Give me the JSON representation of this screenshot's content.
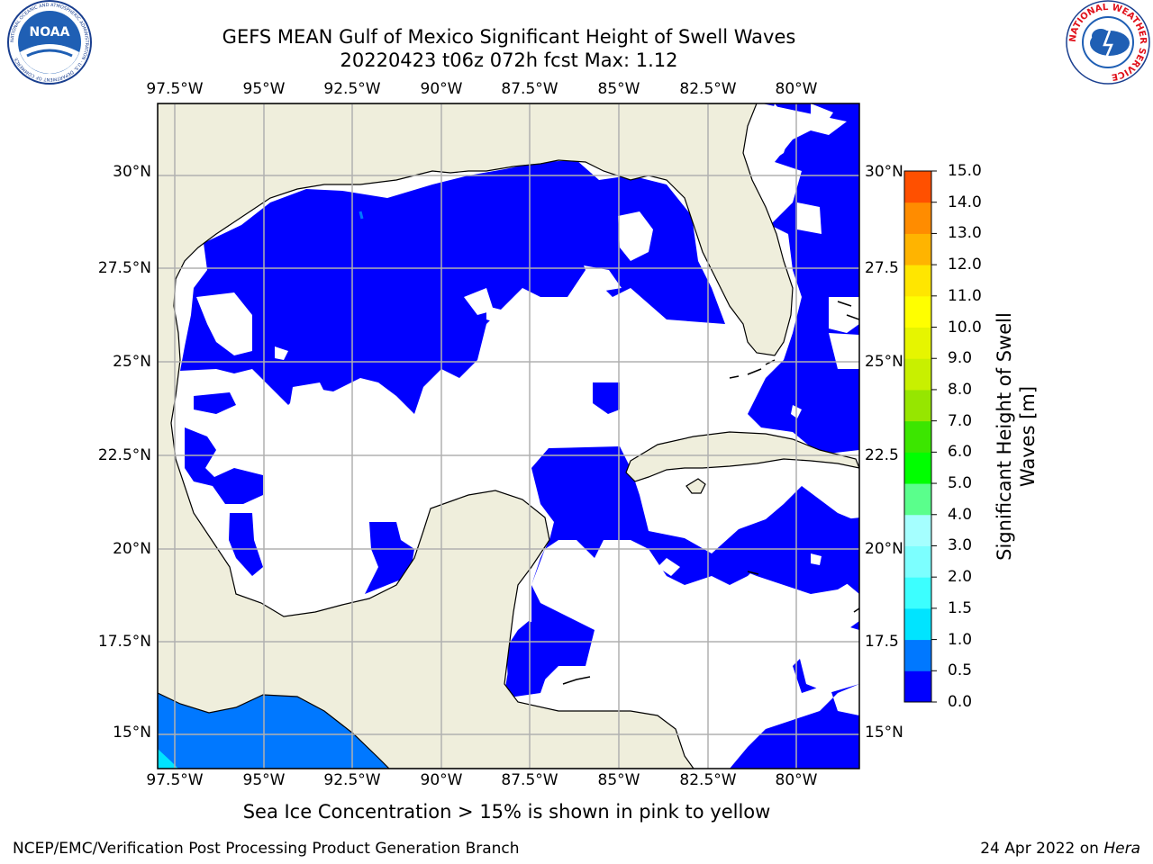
{
  "title": "GEFS MEAN Gulf of Mexico Significant Height of Swell Waves",
  "subtitle": "20220423 t06z 072h fcst   Max: 1.12",
  "logos": {
    "left": "NOAA",
    "left_ring_text": "NATIONAL OCEANIC AND ATMOSPHERIC ADMINISTRATION · U.S. DEPARTMENT OF COMMERCE",
    "right_ring_text": "NATIONAL WEATHER SERVICE"
  },
  "lon_labels": [
    "97.5°W",
    "95°W",
    "92.5°W",
    "90°W",
    "87.5°W",
    "85°W",
    "82.5°W",
    "80°W"
  ],
  "lat_labels_left": [
    "30°N",
    "27.5°N",
    "25°N",
    "22.5°N",
    "20°N",
    "17.5°N",
    "15°N"
  ],
  "lat_labels_right": [
    "30°N",
    "27.5",
    "25°N",
    "22.5",
    "20°N",
    "17.5",
    "15°N"
  ],
  "colorbar": {
    "title": "Significant Height of Swell Waves [m]",
    "ticks": [
      "0.0",
      "0.5",
      "1.0",
      "1.5",
      "2.0",
      "3.0",
      "4.0",
      "5.0",
      "6.0",
      "7.0",
      "8.0",
      "9.0",
      "10.0",
      "11.0",
      "12.0",
      "13.0",
      "14.0",
      "15.0"
    ],
    "colors": [
      "#0000ff",
      "#0078ff",
      "#00e4ff",
      "#3cffff",
      "#7cffff",
      "#a5ffff",
      "#5aff8c",
      "#00ff00",
      "#3ce600",
      "#96e600",
      "#c8f000",
      "#e6f500",
      "#ffff00",
      "#ffe600",
      "#ffb400",
      "#ff8c00",
      "#ff5000",
      "#ff2800",
      "#ff0000"
    ]
  },
  "colors": {
    "land": "#efeedc",
    "ocean_none": "#ffffff",
    "swell_low": "#0000ff",
    "swell_mid": "#0078ff",
    "swell_high": "#00e4ff",
    "grid": "#b0b0b0"
  },
  "caption": "Sea Ice Concentration > 15% is shown in pink to yellow",
  "footer": {
    "left": "NCEP/EMC/Verification Post Processing Product Generation Branch",
    "date": "24 Apr 2022 on ",
    "host": "Hera"
  }
}
